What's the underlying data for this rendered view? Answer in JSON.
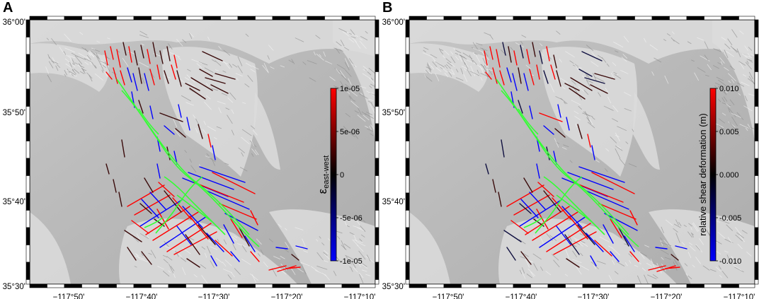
{
  "panels": [
    {
      "id": "A",
      "letter": "A",
      "colorbar": {
        "symbol": "ε",
        "subscript": "east-west",
        "ticks": [
          "1e-05",
          "5e-06",
          "0",
          "-5e-06",
          "-1e-05"
        ]
      }
    },
    {
      "id": "B",
      "letter": "B",
      "colorbar": {
        "label": "relative shear deformation (m)",
        "ticks": [
          "0.010",
          "0.005",
          "0.000",
          "-0.005",
          "-0.010"
        ]
      }
    }
  ],
  "latitude_labels": [
    "36°00'",
    "35°50'",
    "35°40'",
    "35°30'"
  ],
  "longitude_labels": [
    "−117°50'",
    "−117°40'",
    "−117°30'",
    "−117°20'",
    "−117°10'"
  ],
  "colors": {
    "positive": "#ff0000",
    "zero": "#000000",
    "negative": "#0000ff",
    "rupture": "#33ff33",
    "hillshade_base": "#b8b8b8",
    "mountains": "#dcdcdc"
  }
}
